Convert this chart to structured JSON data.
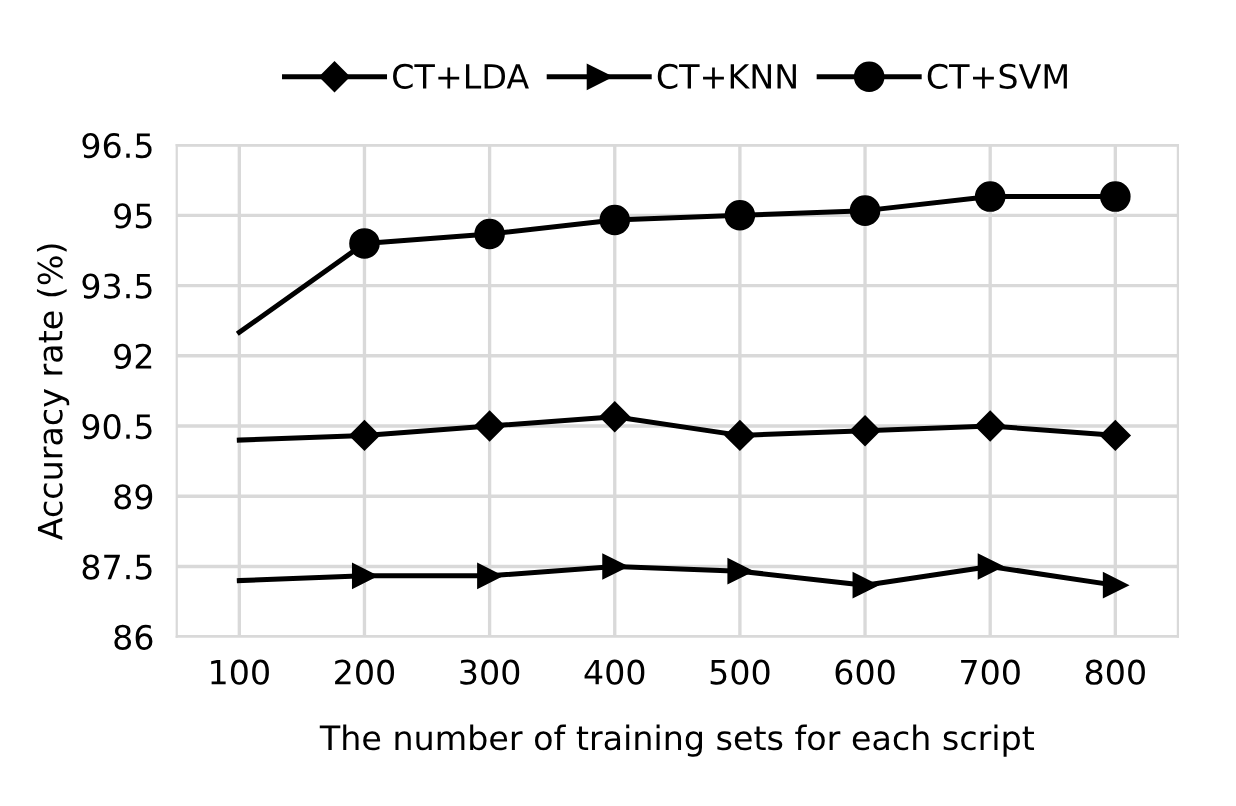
{
  "chart_data": {
    "type": "line",
    "xlabel": "The number of training sets for each script",
    "ylabel": "Accuracy rate (%)",
    "categories": [
      "100",
      "200",
      "300",
      "400",
      "500",
      "600",
      "700",
      "800"
    ],
    "series": [
      {
        "name": "CT+LDA",
        "color": "#000000",
        "marker": "diamond",
        "values": [
          90.2,
          90.3,
          90.5,
          90.7,
          90.3,
          90.4,
          90.5,
          90.3
        ]
      },
      {
        "name": "CT+KNN",
        "color": "#000000",
        "marker": "triangle",
        "values": [
          87.2,
          87.3,
          87.3,
          87.5,
          87.4,
          87.1,
          87.5,
          87.1
        ]
      },
      {
        "name": "CT+SVM",
        "color": "#000000",
        "marker": "circle",
        "values": [
          92.5,
          94.4,
          94.6,
          94.9,
          95.0,
          95.1,
          95.4,
          95.4
        ]
      }
    ],
    "ylim": [
      86,
      96.5
    ],
    "yticks": [
      86,
      87.5,
      89,
      90.5,
      92,
      93.5,
      95,
      96.5
    ],
    "grid": true,
    "legend": "top",
    "line_style": "solid"
  }
}
